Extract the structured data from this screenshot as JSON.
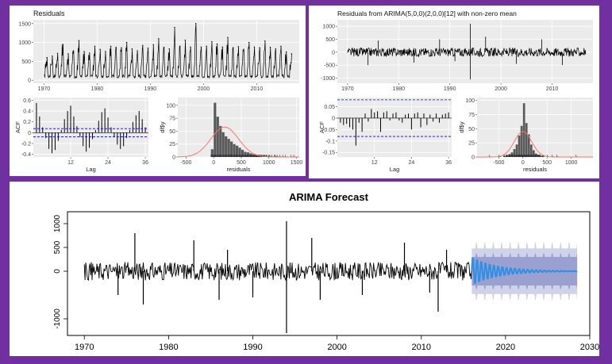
{
  "colors": {
    "frame": "#7030a0",
    "ggplot_bg": "#ebebeb",
    "ggplot_grid": "#ffffff",
    "series": "#000000",
    "acf_bound": "#0000ff",
    "hist_bar": "#595959",
    "density": "#f8766d",
    "forecast_line": "#2e8fe6",
    "pi80": "#9aa0cf",
    "pi95": "#cfd2e8"
  },
  "chart_data": [
    {
      "id": "residuals-ts",
      "type": "line",
      "title": "Residuals",
      "xlabel": "",
      "ylabel": "",
      "xlim": [
        1968,
        2018
      ],
      "ylim": [
        -80,
        1600
      ],
      "xticks": [
        1970,
        1980,
        1990,
        2000,
        2010
      ],
      "yticks": [
        0,
        500,
        1000,
        1500
      ],
      "grid": true,
      "seasonal_peaks": [
        [
          1970,
          600
        ],
        [
          1971,
          640
        ],
        [
          1972,
          710
        ],
        [
          1973,
          950
        ],
        [
          1974,
          700
        ],
        [
          1975,
          780
        ],
        [
          1976,
          1050
        ],
        [
          1977,
          760
        ],
        [
          1978,
          720
        ],
        [
          1979,
          900
        ],
        [
          1980,
          820
        ],
        [
          1981,
          760
        ],
        [
          1982,
          900
        ],
        [
          1983,
          870
        ],
        [
          1984,
          860
        ],
        [
          1985,
          1000
        ],
        [
          1986,
          830
        ],
        [
          1987,
          780
        ],
        [
          1988,
          920
        ],
        [
          1989,
          850
        ],
        [
          1990,
          940
        ],
        [
          1991,
          1100
        ],
        [
          1992,
          870
        ],
        [
          1993,
          830
        ],
        [
          1994,
          1400
        ],
        [
          1995,
          900
        ],
        [
          1996,
          1060
        ],
        [
          1997,
          880
        ],
        [
          1998,
          1500
        ],
        [
          1999,
          880
        ],
        [
          2000,
          900
        ],
        [
          2001,
          1020
        ],
        [
          2002,
          960
        ],
        [
          2003,
          880
        ],
        [
          2004,
          1130
        ],
        [
          2005,
          860
        ],
        [
          2006,
          890
        ],
        [
          2007,
          820
        ],
        [
          2008,
          1000
        ],
        [
          2009,
          880
        ],
        [
          2010,
          860
        ],
        [
          2011,
          1040
        ],
        [
          2012,
          870
        ],
        [
          2013,
          830
        ],
        [
          2014,
          900
        ],
        [
          2015,
          750
        ],
        [
          2016,
          700
        ]
      ]
    },
    {
      "id": "residuals-acf",
      "type": "bar",
      "ylabel": "ACF",
      "xlabel": "Lag",
      "ylim": [
        -0.45,
        0.65
      ],
      "yticks": [
        -0.4,
        -0.2,
        0.0,
        0.2,
        0.4,
        0.6
      ],
      "xticks": [
        12,
        24,
        36
      ],
      "bounds": [
        0.075,
        -0.075
      ],
      "lags": [
        1,
        2,
        3,
        4,
        5,
        6,
        7,
        8,
        9,
        10,
        11,
        12,
        13,
        14,
        15,
        16,
        17,
        18,
        19,
        20,
        21,
        22,
        23,
        24,
        25,
        26,
        27,
        28,
        29,
        30,
        31,
        32,
        33,
        34,
        35,
        36
      ],
      "values": [
        0.55,
        0.3,
        0.1,
        -0.1,
        -0.3,
        -0.38,
        -0.32,
        -0.15,
        0.05,
        0.25,
        0.4,
        0.5,
        0.3,
        0.12,
        -0.08,
        -0.25,
        -0.35,
        -0.28,
        -0.12,
        0.05,
        0.22,
        0.38,
        0.45,
        0.28,
        0.1,
        -0.08,
        -0.22,
        -0.3,
        -0.25,
        -0.1,
        0.05,
        0.2,
        0.32,
        0.4,
        0.25,
        0.1
      ]
    },
    {
      "id": "residuals-hist",
      "type": "bar",
      "ylabel": "df$y",
      "xlabel": "residuals",
      "xlim": [
        -650,
        1550
      ],
      "ylim": [
        0,
        115
      ],
      "xticks": [
        -500,
        0,
        500,
        1000,
        1500
      ],
      "yticks": [
        0,
        25,
        50,
        75,
        100
      ],
      "bin_width": 50,
      "bins": [
        [
          -50,
          15
        ],
        [
          0,
          105
        ],
        [
          50,
          78
        ],
        [
          100,
          60
        ],
        [
          150,
          48
        ],
        [
          200,
          40
        ],
        [
          250,
          35
        ],
        [
          300,
          30
        ],
        [
          350,
          25
        ],
        [
          400,
          22
        ],
        [
          450,
          18
        ],
        [
          500,
          14
        ],
        [
          550,
          10
        ],
        [
          600,
          9
        ],
        [
          650,
          7
        ],
        [
          700,
          5
        ],
        [
          750,
          4
        ],
        [
          800,
          4
        ],
        [
          850,
          3
        ],
        [
          900,
          3
        ],
        [
          950,
          2
        ],
        [
          1000,
          2
        ],
        [
          1050,
          1
        ],
        [
          1100,
          2
        ],
        [
          1150,
          1
        ],
        [
          1200,
          1
        ],
        [
          1250,
          1
        ],
        [
          1300,
          1
        ],
        [
          1400,
          1
        ],
        [
          1450,
          1
        ]
      ],
      "density_mean": 200,
      "density_sd": 250,
      "density_peak": 58
    },
    {
      "id": "arima-residuals-ts",
      "type": "line",
      "title": "Residuals from ARIMA(5,0,0)(2,0,0)[12] with non-zero mean",
      "xlabel": "",
      "ylabel": "",
      "xlim": [
        1968,
        2018
      ],
      "ylim": [
        -1200,
        1250
      ],
      "xticks": [
        1970,
        1980,
        1990,
        2000,
        2010
      ],
      "yticks": [
        -1000,
        -500,
        0,
        500,
        1000
      ],
      "grid": true,
      "spikes": [
        [
          1974,
          -500
        ],
        [
          1976,
          450
        ],
        [
          1983,
          -400
        ],
        [
          1988,
          500
        ],
        [
          1991,
          -350
        ],
        [
          1994,
          1100
        ],
        [
          1994,
          -1050
        ],
        [
          1997,
          600
        ],
        [
          2003,
          -450
        ],
        [
          2008,
          500
        ],
        [
          2012,
          -500
        ]
      ]
    },
    {
      "id": "arima-residuals-acf",
      "type": "bar",
      "ylabel": "ACF",
      "xlabel": "Lag",
      "ylim": [
        -0.17,
        0.09
      ],
      "yticks": [
        -0.15,
        -0.1,
        -0.05,
        0.0,
        0.05
      ],
      "xticks": [
        12,
        24,
        36
      ],
      "bounds": [
        0.08,
        -0.08
      ],
      "lags": [
        1,
        2,
        3,
        4,
        5,
        6,
        7,
        8,
        9,
        10,
        11,
        12,
        13,
        14,
        15,
        16,
        17,
        18,
        19,
        20,
        21,
        22,
        23,
        24,
        25,
        26,
        27,
        28,
        29,
        30,
        31,
        32,
        33,
        34,
        35,
        36
      ],
      "values": [
        -0.02,
        -0.03,
        -0.025,
        -0.04,
        -0.05,
        -0.12,
        -0.02,
        -0.06,
        0.02,
        -0.015,
        0.04,
        0.025,
        0.03,
        -0.06,
        0.025,
        0.03,
        -0.01,
        0.02,
        0.025,
        -0.01,
        -0.02,
        0.015,
        0.02,
        -0.05,
        0.02,
        0.025,
        -0.04,
        0.02,
        -0.03,
        0.015,
        -0.015,
        0.02,
        -0.02,
        0.015,
        0.02,
        0.025
      ]
    },
    {
      "id": "arima-residuals-hist",
      "type": "bar",
      "ylabel": "df$y",
      "xlabel": "residuals",
      "xlim": [
        -950,
        1450
      ],
      "ylim": [
        0,
        105
      ],
      "xticks": [
        -500,
        0,
        500,
        1000
      ],
      "yticks": [
        0,
        25,
        50,
        75,
        100
      ],
      "bin_width": 50,
      "bins": [
        [
          -700,
          1
        ],
        [
          -500,
          1
        ],
        [
          -400,
          2
        ],
        [
          -350,
          3
        ],
        [
          -300,
          5
        ],
        [
          -250,
          8
        ],
        [
          -200,
          14
        ],
        [
          -150,
          22
        ],
        [
          -100,
          38
        ],
        [
          -50,
          55
        ],
        [
          0,
          95
        ],
        [
          50,
          60
        ],
        [
          100,
          40
        ],
        [
          150,
          22
        ],
        [
          200,
          12
        ],
        [
          250,
          6
        ],
        [
          300,
          4
        ],
        [
          350,
          2
        ],
        [
          400,
          2
        ],
        [
          500,
          1
        ],
        [
          600,
          1
        ],
        [
          700,
          1
        ],
        [
          1100,
          1
        ]
      ],
      "density_mean": 0,
      "density_sd": 180,
      "density_peak": 45
    },
    {
      "id": "arima-forecast",
      "type": "line",
      "title": "ARIMA Forecast",
      "xlabel": "",
      "ylabel": "",
      "xlim": [
        1968,
        2030
      ],
      "ylim": [
        -1350,
        1250
      ],
      "xticks": [
        1970,
        1980,
        1990,
        2000,
        2010,
        2020,
        2030
      ],
      "yticks": [
        -1000,
        0,
        500,
        1000
      ],
      "grid": false,
      "spikes": [
        [
          1974,
          -500
        ],
        [
          1976,
          800
        ],
        [
          1977,
          -700
        ],
        [
          1983,
          650
        ],
        [
          1986,
          -600
        ],
        [
          1987,
          450
        ],
        [
          1990,
          -550
        ],
        [
          1994,
          1050
        ],
        [
          1994,
          -1300
        ],
        [
          1997,
          700
        ],
        [
          1998,
          -600
        ],
        [
          2003,
          -500
        ],
        [
          2008,
          600
        ],
        [
          2011,
          -450
        ],
        [
          2012,
          -850
        ],
        [
          2013,
          450
        ]
      ],
      "forecast_start": 2016,
      "forecast_end": 2028.5,
      "pi80_halfwidth": 300,
      "pi95_halfwidth": 480
    }
  ]
}
